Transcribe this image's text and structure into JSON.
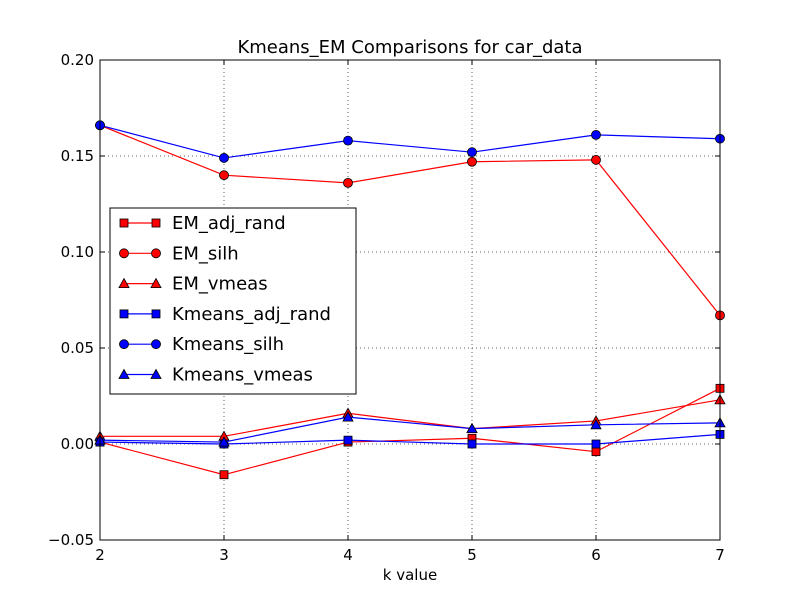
{
  "chart_data": {
    "type": "line",
    "title": "Kmeans_EM Comparisons for car_data",
    "xlabel": "k value",
    "ylabel": "",
    "x": [
      2,
      3,
      4,
      5,
      6,
      7
    ],
    "xlim": [
      2,
      7
    ],
    "ylim": [
      -0.05,
      0.2
    ],
    "xticks": [
      "2",
      "3",
      "4",
      "5",
      "6",
      "7"
    ],
    "yticks": [
      "−0.05",
      "0.00",
      "0.05",
      "0.10",
      "0.15",
      "0.20"
    ],
    "ytick_values": [
      -0.05,
      0.0,
      0.05,
      0.1,
      0.15,
      0.2
    ],
    "grid": true,
    "legend_position": "center-left",
    "series": [
      {
        "name": "EM_adj_rand",
        "color": "#ff0000",
        "marker": "square",
        "values": [
          0.001,
          -0.016,
          0.001,
          0.003,
          -0.004,
          0.029
        ]
      },
      {
        "name": "EM_silh",
        "color": "#ff0000",
        "marker": "circle",
        "values": [
          0.166,
          0.14,
          0.136,
          0.147,
          0.148,
          0.067
        ]
      },
      {
        "name": "EM_vmeas",
        "color": "#ff0000",
        "marker": "triangle",
        "values": [
          0.004,
          0.004,
          0.016,
          0.008,
          0.012,
          0.023
        ]
      },
      {
        "name": "Kmeans_adj_rand",
        "color": "#0000ff",
        "marker": "square",
        "values": [
          0.001,
          0.0,
          0.002,
          0.0,
          0.0,
          0.005
        ]
      },
      {
        "name": "Kmeans_silh",
        "color": "#0000ff",
        "marker": "circle",
        "values": [
          0.166,
          0.149,
          0.158,
          0.152,
          0.161,
          0.159
        ]
      },
      {
        "name": "Kmeans_vmeas",
        "color": "#0000ff",
        "marker": "triangle",
        "values": [
          0.002,
          0.001,
          0.014,
          0.008,
          0.01,
          0.011
        ]
      }
    ]
  }
}
